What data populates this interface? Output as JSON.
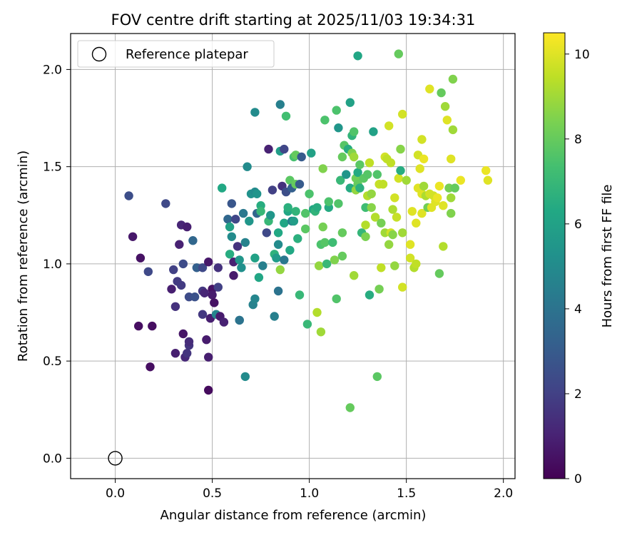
{
  "chart_data": {
    "type": "scatter",
    "title": "FOV centre drift starting at 2025/11/03 19:34:31",
    "xlabel": "Angular distance from reference (arcmin)",
    "ylabel": "Rotation from reference (arcmin)",
    "xlim": [
      -0.23,
      2.06
    ],
    "ylim": [
      -0.105,
      2.185
    ],
    "xticks": [
      0.0,
      0.5,
      1.0,
      1.5,
      2.0
    ],
    "xtick_labels": [
      "0.0",
      "0.5",
      "1.0",
      "1.5",
      "2.0"
    ],
    "yticks": [
      0.0,
      0.5,
      1.0,
      1.5,
      2.0
    ],
    "ytick_labels": [
      "0.0",
      "0.5",
      "1.0",
      "1.5",
      "2.0"
    ],
    "grid": true,
    "legend": {
      "position": "top-left",
      "label": "Reference platepar",
      "marker": "open-circle"
    },
    "reference_point": {
      "x": 0.0,
      "y": 0.0
    },
    "colorbar": {
      "label": "Hours from first FF file",
      "range": [
        0,
        10.5
      ],
      "ticks": [
        0,
        2,
        4,
        6,
        8,
        10
      ],
      "tick_labels": [
        "0",
        "2",
        "4",
        "6",
        "8",
        "10"
      ],
      "colormap": "viridis"
    },
    "series": [
      {
        "name": "FOV centre",
        "points": [
          [
            0.07,
            1.35,
            2.5
          ],
          [
            0.09,
            1.14,
            0.7
          ],
          [
            0.13,
            1.03,
            0.5
          ],
          [
            0.12,
            0.68,
            0.4
          ],
          [
            0.17,
            0.96,
            2.3
          ],
          [
            0.19,
            0.68,
            0.4
          ],
          [
            0.18,
            0.47,
            0.4
          ],
          [
            0.26,
            1.31,
            2.3
          ],
          [
            0.29,
            0.87,
            0.9
          ],
          [
            0.3,
            0.97,
            2.0
          ],
          [
            0.31,
            0.78,
            1.5
          ],
          [
            0.32,
            0.91,
            1.8
          ],
          [
            0.31,
            0.54,
            0.9
          ],
          [
            0.33,
            1.1,
            1.0
          ],
          [
            0.34,
            1.2,
            1.1
          ],
          [
            0.35,
            1.0,
            2.4
          ],
          [
            0.34,
            0.89,
            1.8
          ],
          [
            0.35,
            0.64,
            0.6
          ],
          [
            0.36,
            0.52,
            1.2
          ],
          [
            0.37,
            0.54,
            1.6
          ],
          [
            0.37,
            1.19,
            0.9
          ],
          [
            0.38,
            0.58,
            1.6
          ],
          [
            0.38,
            0.6,
            1.3
          ],
          [
            0.38,
            0.83,
            2.4
          ],
          [
            0.4,
            1.12,
            3.5
          ],
          [
            0.41,
            0.83,
            2.6
          ],
          [
            0.42,
            0.98,
            3.2
          ],
          [
            0.45,
            0.98,
            2.3
          ],
          [
            0.45,
            0.86,
            1.7
          ],
          [
            0.45,
            0.74,
            1.7
          ],
          [
            0.46,
            0.85,
            1.1
          ],
          [
            0.47,
            0.61,
            0.8
          ],
          [
            0.48,
            1.01,
            0.7
          ],
          [
            0.48,
            0.52,
            0.9
          ],
          [
            0.48,
            0.35,
            0.3
          ],
          [
            0.49,
            0.72,
            0.9
          ],
          [
            0.5,
            0.87,
            0.5
          ],
          [
            0.5,
            0.84,
            0.8
          ],
          [
            0.51,
            0.8,
            0.5
          ],
          [
            0.52,
            0.74,
            4.8
          ],
          [
            0.53,
            0.98,
            1.5
          ],
          [
            0.53,
            0.88,
            2.0
          ],
          [
            0.54,
            0.73,
            0.8
          ],
          [
            0.55,
            1.39,
            6.3
          ],
          [
            0.56,
            0.7,
            1.0
          ],
          [
            0.58,
            1.23,
            3.5
          ],
          [
            0.59,
            1.19,
            6.0
          ],
          [
            0.59,
            1.05,
            6.5
          ],
          [
            0.6,
            1.14,
            5.0
          ],
          [
            0.6,
            1.31,
            2.8
          ],
          [
            0.61,
            1.01,
            1.0
          ],
          [
            0.61,
            0.94,
            0.8
          ],
          [
            0.62,
            1.23,
            2.2
          ],
          [
            0.63,
            1.09,
            1.5
          ],
          [
            0.64,
            0.71,
            4.5
          ],
          [
            0.64,
            0.71,
            4.0
          ],
          [
            0.64,
            1.02,
            5.5
          ],
          [
            0.65,
            0.98,
            5.2
          ],
          [
            0.66,
            1.26,
            4.2
          ],
          [
            0.67,
            0.42,
            5.0
          ],
          [
            0.67,
            1.11,
            4.6
          ],
          [
            0.68,
            1.5,
            5.0
          ],
          [
            0.69,
            1.22,
            5.5
          ],
          [
            0.7,
            1.36,
            5.3
          ],
          [
            0.71,
            0.79,
            4.6
          ],
          [
            0.72,
            0.82,
            4.8
          ],
          [
            0.72,
            1.78,
            5.0
          ],
          [
            0.72,
            1.37,
            5.0
          ],
          [
            0.72,
            1.03,
            6.0
          ],
          [
            0.73,
            1.26,
            3.5
          ],
          [
            0.73,
            1.36,
            5.4
          ],
          [
            0.74,
            0.93,
            6.2
          ],
          [
            0.75,
            1.3,
            6.5
          ],
          [
            0.75,
            1.27,
            7.0
          ],
          [
            0.76,
            0.99,
            4.5
          ],
          [
            0.78,
            1.16,
            2.3
          ],
          [
            0.79,
            1.59,
            1.0
          ],
          [
            0.79,
            1.22,
            7.0
          ],
          [
            0.8,
            1.25,
            5.5
          ],
          [
            0.81,
            1.38,
            2.0
          ],
          [
            0.82,
            1.05,
            6.7
          ],
          [
            0.82,
            0.73,
            4.5
          ],
          [
            0.83,
            1.03,
            5.7
          ],
          [
            0.84,
            1.1,
            5.0
          ],
          [
            0.84,
            0.86,
            4.0
          ],
          [
            0.84,
            1.16,
            6.3
          ],
          [
            0.85,
            0.97,
            8.8
          ],
          [
            0.85,
            1.58,
            5.8
          ],
          [
            0.85,
            1.82,
            4.5
          ],
          [
            0.86,
            1.4,
            1.5
          ],
          [
            0.87,
            1.59,
            2.2
          ],
          [
            0.87,
            1.21,
            6.2
          ],
          [
            0.87,
            1.02,
            4.2
          ],
          [
            0.88,
            1.76,
            7.3
          ],
          [
            0.88,
            1.37,
            2.5
          ],
          [
            0.89,
            1.27,
            6.2
          ],
          [
            0.89,
            1.29,
            6.6
          ],
          [
            0.9,
            1.43,
            7.8
          ],
          [
            0.9,
            1.07,
            6.3
          ],
          [
            0.91,
            1.39,
            3.2
          ],
          [
            0.91,
            1.22,
            4.5
          ],
          [
            0.92,
            1.22,
            5.8
          ],
          [
            0.92,
            1.55,
            7.4
          ],
          [
            0.93,
            1.56,
            8.0
          ],
          [
            0.93,
            1.27,
            6.8
          ],
          [
            0.93,
            1.41,
            8.0
          ],
          [
            0.94,
            1.13,
            6.6
          ],
          [
            0.95,
            1.41,
            3.0
          ],
          [
            0.95,
            0.84,
            7.0
          ],
          [
            0.96,
            1.55,
            3.0
          ],
          [
            0.98,
            1.26,
            7.6
          ],
          [
            0.98,
            1.18,
            7.8
          ],
          [
            0.99,
            0.69,
            7.0
          ],
          [
            1.0,
            1.36,
            7.5
          ],
          [
            1.01,
            1.57,
            6.0
          ],
          [
            1.02,
            1.28,
            6.2
          ],
          [
            1.03,
            1.27,
            6.8
          ],
          [
            1.04,
            0.75,
            9.3
          ],
          [
            1.04,
            1.29,
            6.5
          ],
          [
            1.05,
            0.99,
            8.8
          ],
          [
            1.06,
            0.65,
            9.0
          ],
          [
            1.06,
            1.1,
            7.5
          ],
          [
            1.07,
            1.19,
            8.3
          ],
          [
            1.07,
            1.49,
            8.5
          ],
          [
            1.08,
            1.11,
            7.7
          ],
          [
            1.08,
            1.74,
            7.5
          ],
          [
            1.09,
            1.0,
            7.0
          ],
          [
            1.1,
            1.29,
            6.4
          ],
          [
            1.1,
            1.32,
            7.5
          ],
          [
            1.12,
            1.11,
            7.2
          ],
          [
            1.13,
            1.02,
            8.5
          ],
          [
            1.14,
            0.82,
            7.6
          ],
          [
            1.14,
            1.79,
            7.5
          ],
          [
            1.15,
            1.7,
            5.5
          ],
          [
            1.15,
            1.31,
            7.6
          ],
          [
            1.16,
            1.43,
            7.0
          ],
          [
            1.17,
            1.04,
            8.0
          ],
          [
            1.17,
            1.55,
            8.0
          ],
          [
            1.17,
            1.16,
            8.0
          ],
          [
            1.18,
            1.61,
            7.7
          ],
          [
            1.19,
            1.46,
            5.5
          ],
          [
            1.2,
            1.59,
            6.5
          ],
          [
            1.21,
            1.83,
            6.0
          ],
          [
            1.21,
            1.39,
            6.4
          ],
          [
            1.21,
            0.26,
            8.0
          ],
          [
            1.22,
            1.66,
            6.8
          ],
          [
            1.22,
            1.57,
            8.5
          ],
          [
            1.23,
            0.94,
            9.0
          ],
          [
            1.23,
            1.68,
            7.6
          ],
          [
            1.23,
            1.55,
            9.0
          ],
          [
            1.24,
            1.44,
            8.2
          ],
          [
            1.24,
            1.38,
            8.8
          ],
          [
            1.25,
            2.07,
            6.2
          ],
          [
            1.25,
            1.47,
            6.4
          ],
          [
            1.25,
            1.41,
            8.0
          ],
          [
            1.26,
            1.51,
            7.8
          ],
          [
            1.26,
            1.39,
            6.6
          ],
          [
            1.27,
            1.16,
            6.9
          ],
          [
            1.28,
            1.44,
            7.8
          ],
          [
            1.29,
            1.2,
            9.3
          ],
          [
            1.29,
            1.29,
            7.2
          ],
          [
            1.29,
            1.14,
            8.4
          ],
          [
            1.3,
            1.46,
            7.7
          ],
          [
            1.3,
            1.35,
            9.3
          ],
          [
            1.31,
            1.52,
            9.5
          ],
          [
            1.31,
            0.84,
            6.5
          ],
          [
            1.32,
            1.29,
            8.6
          ],
          [
            1.32,
            1.36,
            8.8
          ],
          [
            1.33,
            1.68,
            6.0
          ],
          [
            1.34,
            1.24,
            9.3
          ],
          [
            1.35,
            1.46,
            7.6
          ],
          [
            1.35,
            0.42,
            7.8
          ],
          [
            1.36,
            1.41,
            9.6
          ],
          [
            1.36,
            0.87,
            8.3
          ],
          [
            1.37,
            1.21,
            8.3
          ],
          [
            1.37,
            0.98,
            9.5
          ],
          [
            1.38,
            1.41,
            9.5
          ],
          [
            1.39,
            1.55,
            9.8
          ],
          [
            1.39,
            1.16,
            9.0
          ],
          [
            1.4,
            1.54,
            9.5
          ],
          [
            1.41,
            1.71,
            9.8
          ],
          [
            1.41,
            1.1,
            8.8
          ],
          [
            1.42,
            1.52,
            9.5
          ],
          [
            1.42,
            1.16,
            9.8
          ],
          [
            1.43,
            1.28,
            9.2
          ],
          [
            1.43,
            1.15,
            8.6
          ],
          [
            1.44,
            1.34,
            9.8
          ],
          [
            1.44,
            0.99,
            8.8
          ],
          [
            1.45,
            1.24,
            9.6
          ],
          [
            1.46,
            1.44,
            9.8
          ],
          [
            1.46,
            2.08,
            8.0
          ],
          [
            1.47,
            1.59,
            8.6
          ],
          [
            1.47,
            1.48,
            6.5
          ],
          [
            1.48,
            1.16,
            9.0
          ],
          [
            1.48,
            0.88,
            9.8
          ],
          [
            1.48,
            1.77,
            9.8
          ],
          [
            1.5,
            1.43,
            9.0
          ],
          [
            1.52,
            1.1,
            10.0
          ],
          [
            1.52,
            1.03,
            9.8
          ],
          [
            1.53,
            1.27,
            10.0
          ],
          [
            1.54,
            0.98,
            9.3
          ],
          [
            1.55,
            1.0,
            9.5
          ],
          [
            1.55,
            1.21,
            10.0
          ],
          [
            1.56,
            1.39,
            10.0
          ],
          [
            1.56,
            1.56,
            9.8
          ],
          [
            1.57,
            1.49,
            10.0
          ],
          [
            1.58,
            1.36,
            10.0
          ],
          [
            1.58,
            1.26,
            10.0
          ],
          [
            1.58,
            1.64,
            9.8
          ],
          [
            1.59,
            1.54,
            10.2
          ],
          [
            1.59,
            1.4,
            9.0
          ],
          [
            1.6,
            1.35,
            9.2
          ],
          [
            1.61,
            1.29,
            8.2
          ],
          [
            1.62,
            1.9,
            10.0
          ],
          [
            1.62,
            1.36,
            9.8
          ],
          [
            1.63,
            1.29,
            10.0
          ],
          [
            1.64,
            1.35,
            9.8
          ],
          [
            1.65,
            1.32,
            10.0
          ],
          [
            1.66,
            1.34,
            10.2
          ],
          [
            1.67,
            1.4,
            10.2
          ],
          [
            1.67,
            0.95,
            8.0
          ],
          [
            1.68,
            1.88,
            8.0
          ],
          [
            1.69,
            1.09,
            9.3
          ],
          [
            1.69,
            1.3,
            10.0
          ],
          [
            1.7,
            1.81,
            9.0
          ],
          [
            1.71,
            1.74,
            10.0
          ],
          [
            1.72,
            1.39,
            8.3
          ],
          [
            1.73,
            1.54,
            10.0
          ],
          [
            1.73,
            1.34,
            9.0
          ],
          [
            1.73,
            1.26,
            8.5
          ],
          [
            1.74,
            1.95,
            8.5
          ],
          [
            1.74,
            1.69,
            9.0
          ],
          [
            1.75,
            1.39,
            8.0
          ],
          [
            1.78,
            1.43,
            10.2
          ],
          [
            1.91,
            1.48,
            10.2
          ],
          [
            1.92,
            1.43,
            10.0
          ]
        ]
      }
    ]
  }
}
